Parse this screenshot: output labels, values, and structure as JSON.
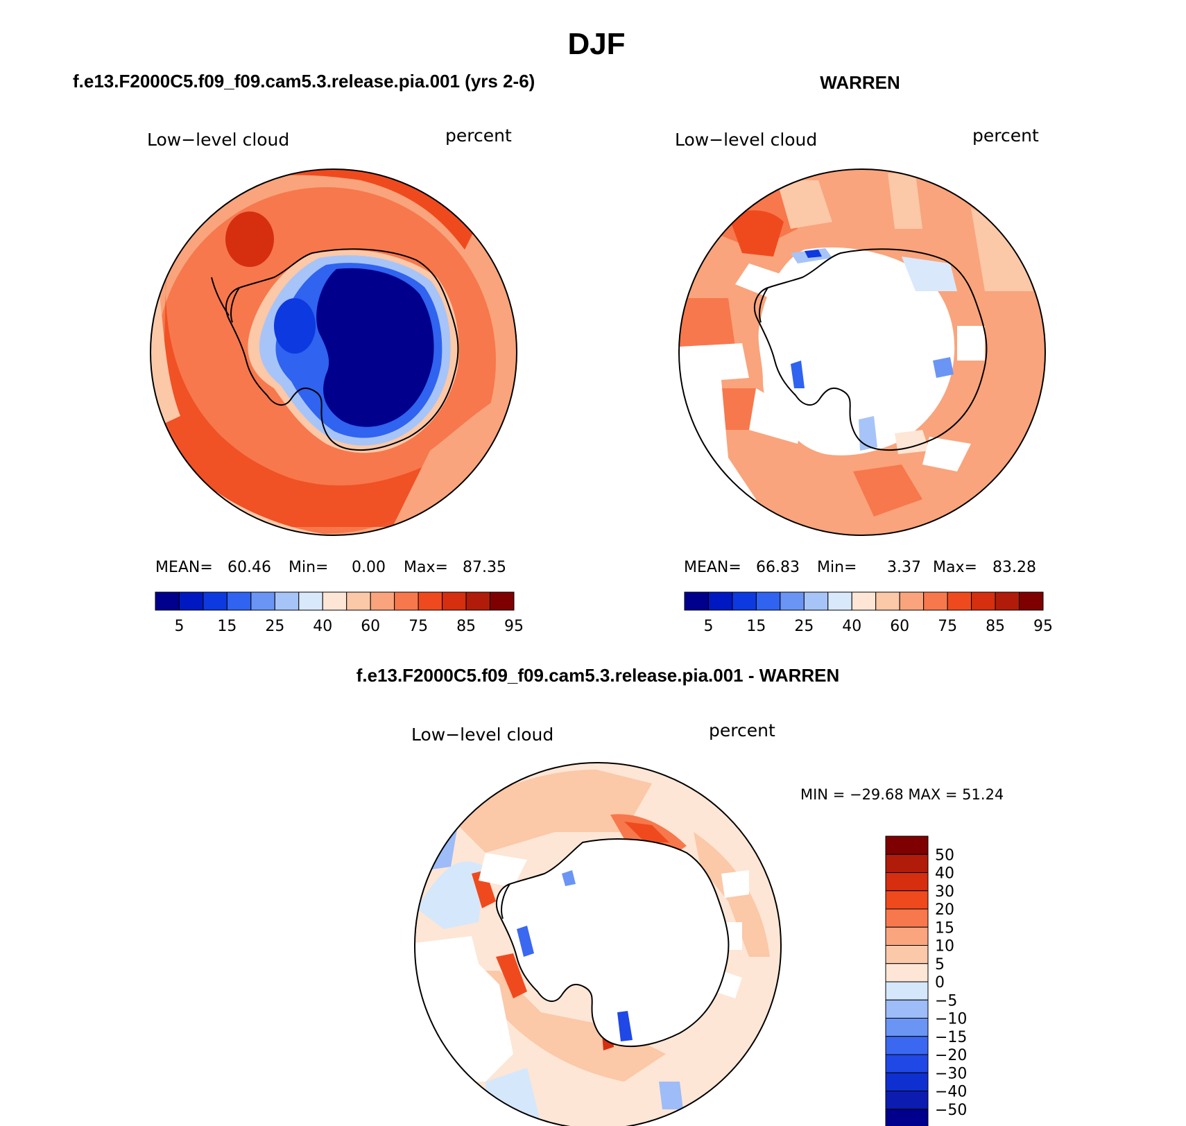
{
  "figure": {
    "title": "DJF",
    "panels": [
      {
        "case_title": "f.e13.F2000C5.f09_f09.cam5.3.release.pia.001 (yrs 2-6)",
        "variable": "Low−level cloud",
        "units": "percent",
        "stats": {
          "mean_label": "MEAN=",
          "mean": "60.46",
          "min_label": "Min=",
          "min": "0.00",
          "max_label": "Max=",
          "max": "87.35"
        },
        "scheme": "model"
      },
      {
        "case_title": "WARREN",
        "variable": "Low−level cloud",
        "units": "percent",
        "stats": {
          "mean_label": "MEAN=",
          "mean": "66.83",
          "min_label": "Min=",
          "min": "3.37",
          "max_label": "Max=",
          "max": "83.28"
        },
        "scheme": "obs"
      },
      {
        "case_title": "f.e13.F2000C5.f09_f09.cam5.3.release.pia.001 - WARREN",
        "variable": "Low−level cloud",
        "units": "percent",
        "minmax_text": "MIN = −29.68 MAX =   51.24",
        "scheme": "diff"
      }
    ],
    "abs_colorbar": {
      "colors": [
        "#00008c",
        "#0018c2",
        "#0d39e0",
        "#2f63f0",
        "#6a95f5",
        "#a7c4f8",
        "#d9e9fb",
        "#fde6d5",
        "#fbc8a8",
        "#f9a47c",
        "#f7784c",
        "#ef4a1e",
        "#d52f10",
        "#b01c09",
        "#7f0000"
      ],
      "tick_labels": [
        "5",
        "15",
        "25",
        "40",
        "60",
        "75",
        "85",
        "95"
      ]
    },
    "diff_colorbar": {
      "colors": [
        "#00008c",
        "#0c1cb0",
        "#0f30d0",
        "#1f48e6",
        "#3b68f0",
        "#6a95f5",
        "#9dbcf8",
        "#d5e7fb",
        "#fde6d5",
        "#fbc9aa",
        "#fba57f",
        "#f7784c",
        "#ef4a1e",
        "#d52f10",
        "#b01c09",
        "#7f0000"
      ],
      "tick_labels": [
        "50",
        "40",
        "30",
        "20",
        "15",
        "10",
        "5",
        "0",
        "−5",
        "−10",
        "−15",
        "−20",
        "−30",
        "−40",
        "−50"
      ]
    }
  }
}
